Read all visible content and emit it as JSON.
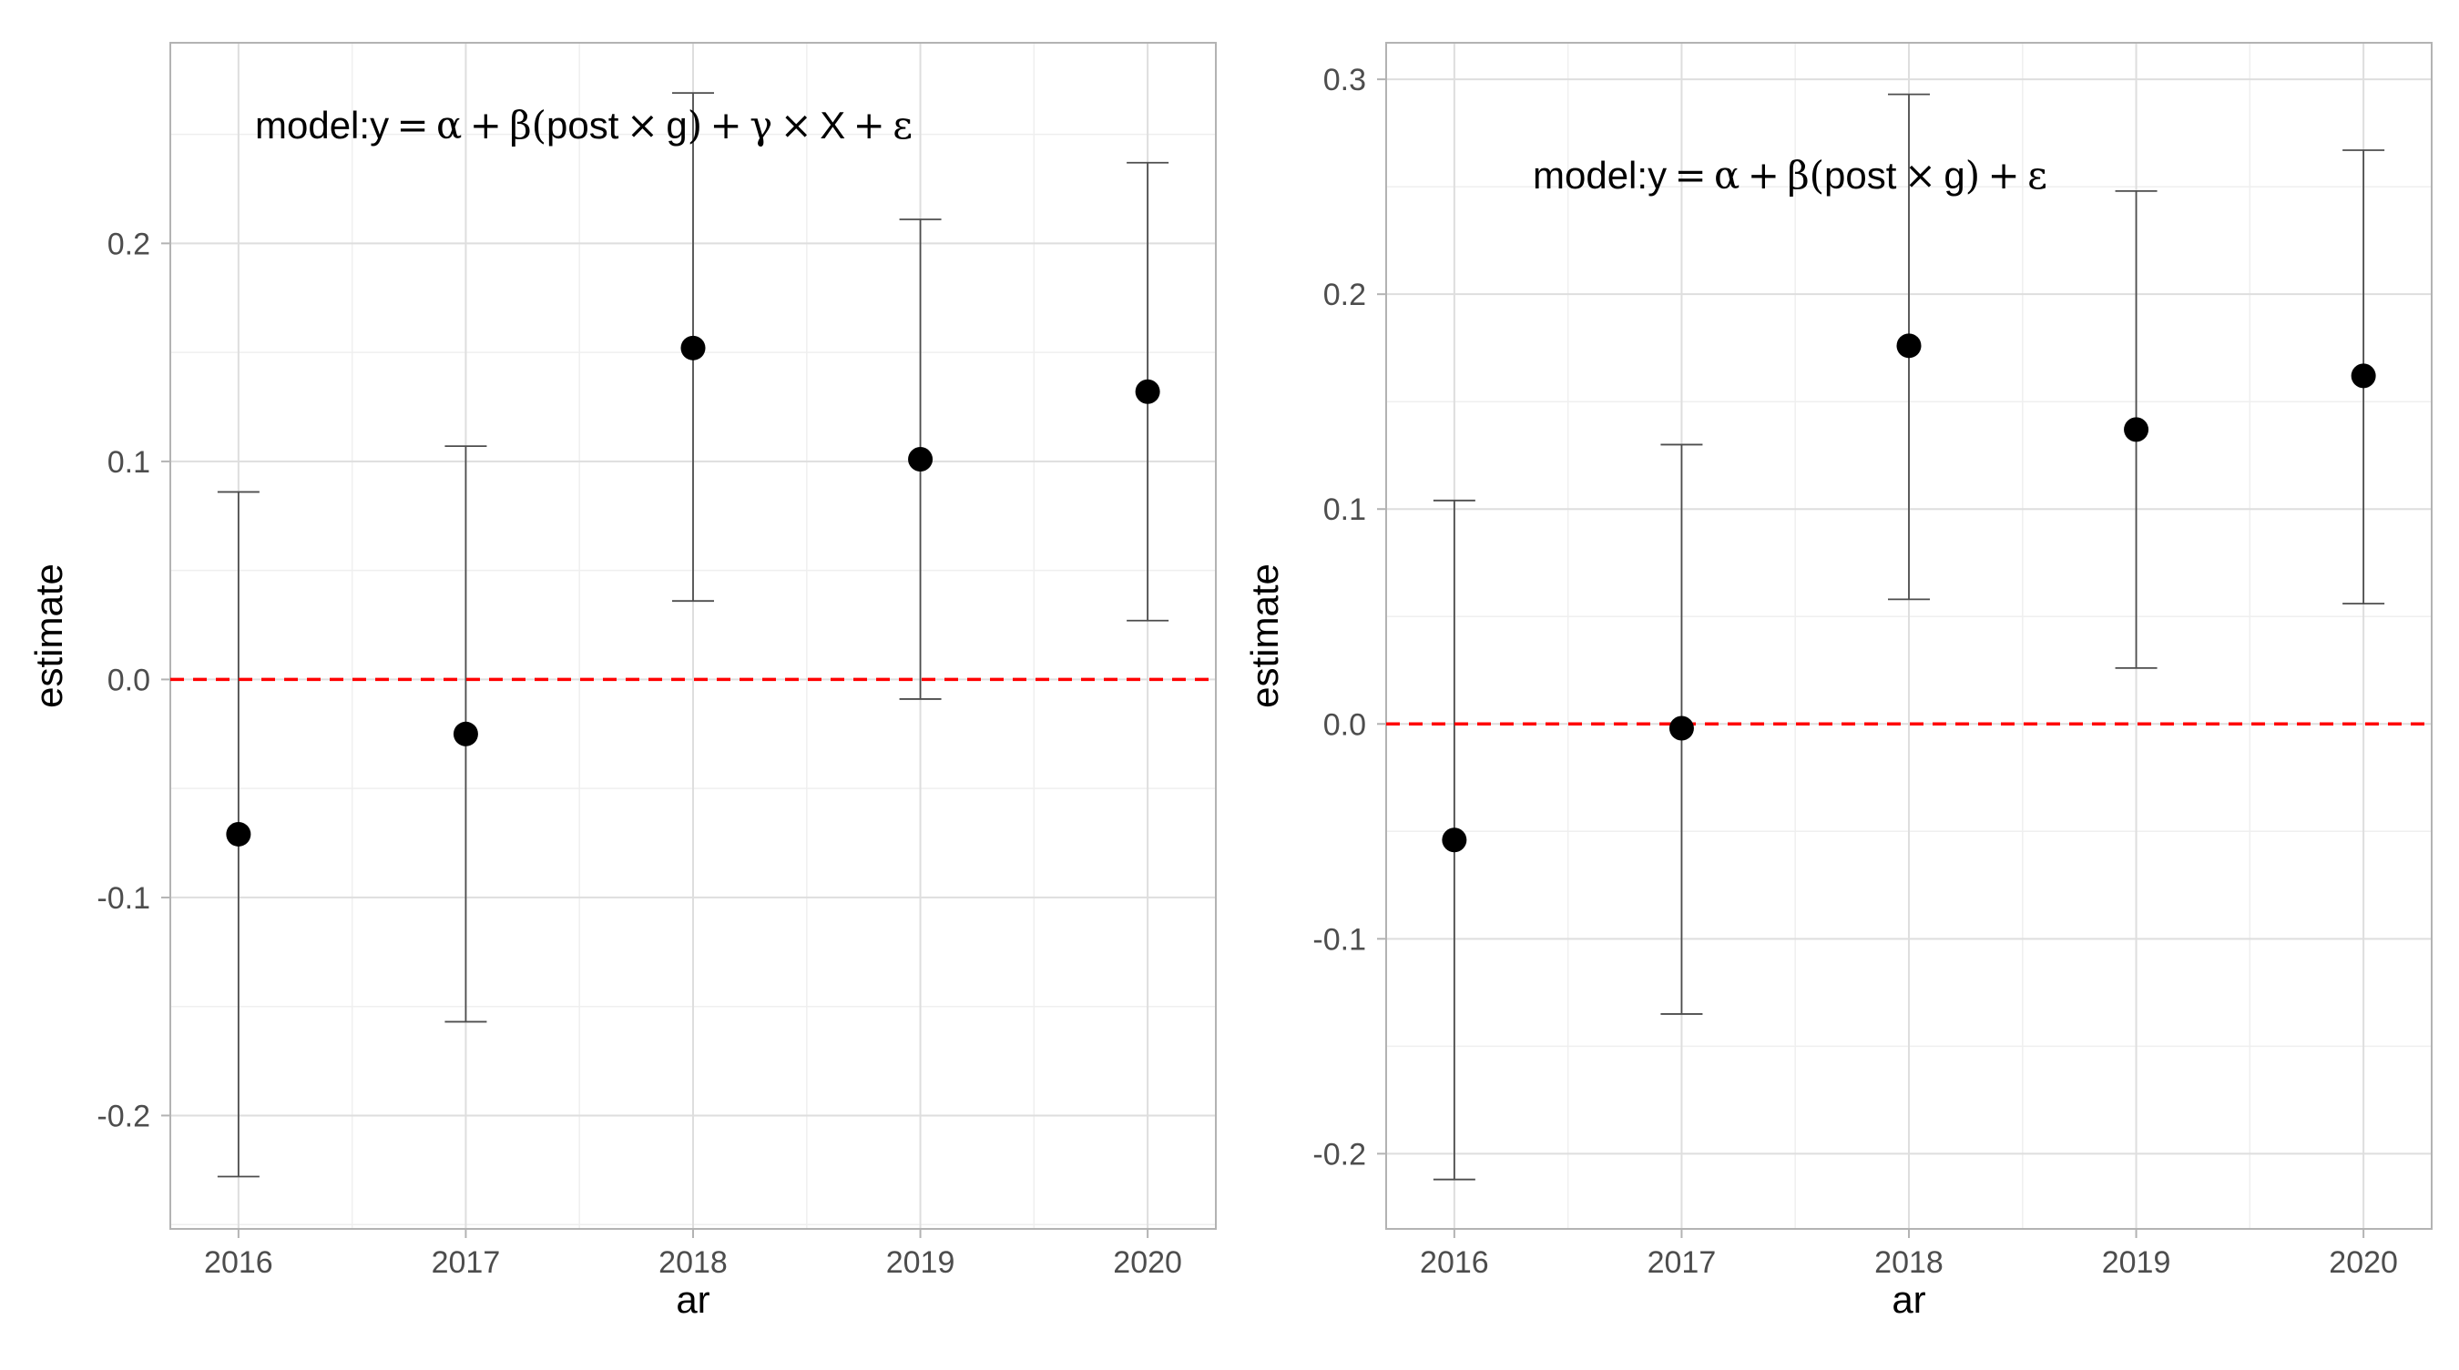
{
  "colors": {
    "background": "#ffffff",
    "panel_border": "#b3b3b3",
    "grid_major": "#dedede",
    "grid_minor": "#efefef",
    "point": "#000000",
    "errorbar": "#4d4d4d",
    "reference_line": "#ff0000"
  },
  "chart_data": [
    {
      "type": "scatter",
      "subtype": "point-with-errorbars",
      "title": "",
      "annotation": {
        "prefix": "model:",
        "formula": [
          "y",
          "=",
          "α",
          "+",
          "β",
          "(",
          "post",
          "×",
          "g",
          ")",
          "+",
          "γ",
          "×",
          "X",
          "+",
          "ε"
        ]
      },
      "xlabel": "ar",
      "ylabel": "estimate",
      "categories": [
        "2016",
        "2017",
        "2018",
        "2019",
        "2020"
      ],
      "yticks": [
        "-0.2",
        "-0.1",
        "0.0",
        "0.1",
        "0.2"
      ],
      "ylim": [
        -0.252,
        0.292
      ],
      "series": [
        {
          "estimate": [
            -0.071,
            -0.025,
            0.152,
            0.101,
            0.132
          ],
          "lower": [
            -0.228,
            -0.157,
            0.036,
            -0.009,
            0.027
          ],
          "upper": [
            0.086,
            0.107,
            0.269,
            0.211,
            0.237
          ]
        }
      ],
      "reference_line": {
        "y": 0,
        "style": "dashed",
        "color": "#ff0000"
      },
      "grid": true
    },
    {
      "type": "scatter",
      "subtype": "point-with-errorbars",
      "title": "",
      "annotation": {
        "prefix": "model:",
        "formula": [
          "y",
          "=",
          "α",
          "+",
          "β",
          "(",
          "post",
          "×",
          "g",
          ")",
          "+",
          "ε"
        ]
      },
      "xlabel": "ar",
      "ylabel": "estimate",
      "categories": [
        "2016",
        "2017",
        "2018",
        "2019",
        "2020"
      ],
      "yticks": [
        "-0.2",
        "-0.1",
        "0.0",
        "0.1",
        "0.2",
        "0.3"
      ],
      "ylim": [
        -0.235,
        0.317
      ],
      "series": [
        {
          "estimate": [
            -0.054,
            -0.002,
            0.176,
            0.137,
            0.162
          ],
          "lower": [
            -0.212,
            -0.135,
            0.058,
            0.026,
            0.056
          ],
          "upper": [
            0.104,
            0.13,
            0.293,
            0.248,
            0.267
          ]
        }
      ],
      "reference_line": {
        "y": 0,
        "style": "dashed",
        "color": "#ff0000"
      },
      "grid": true
    }
  ]
}
